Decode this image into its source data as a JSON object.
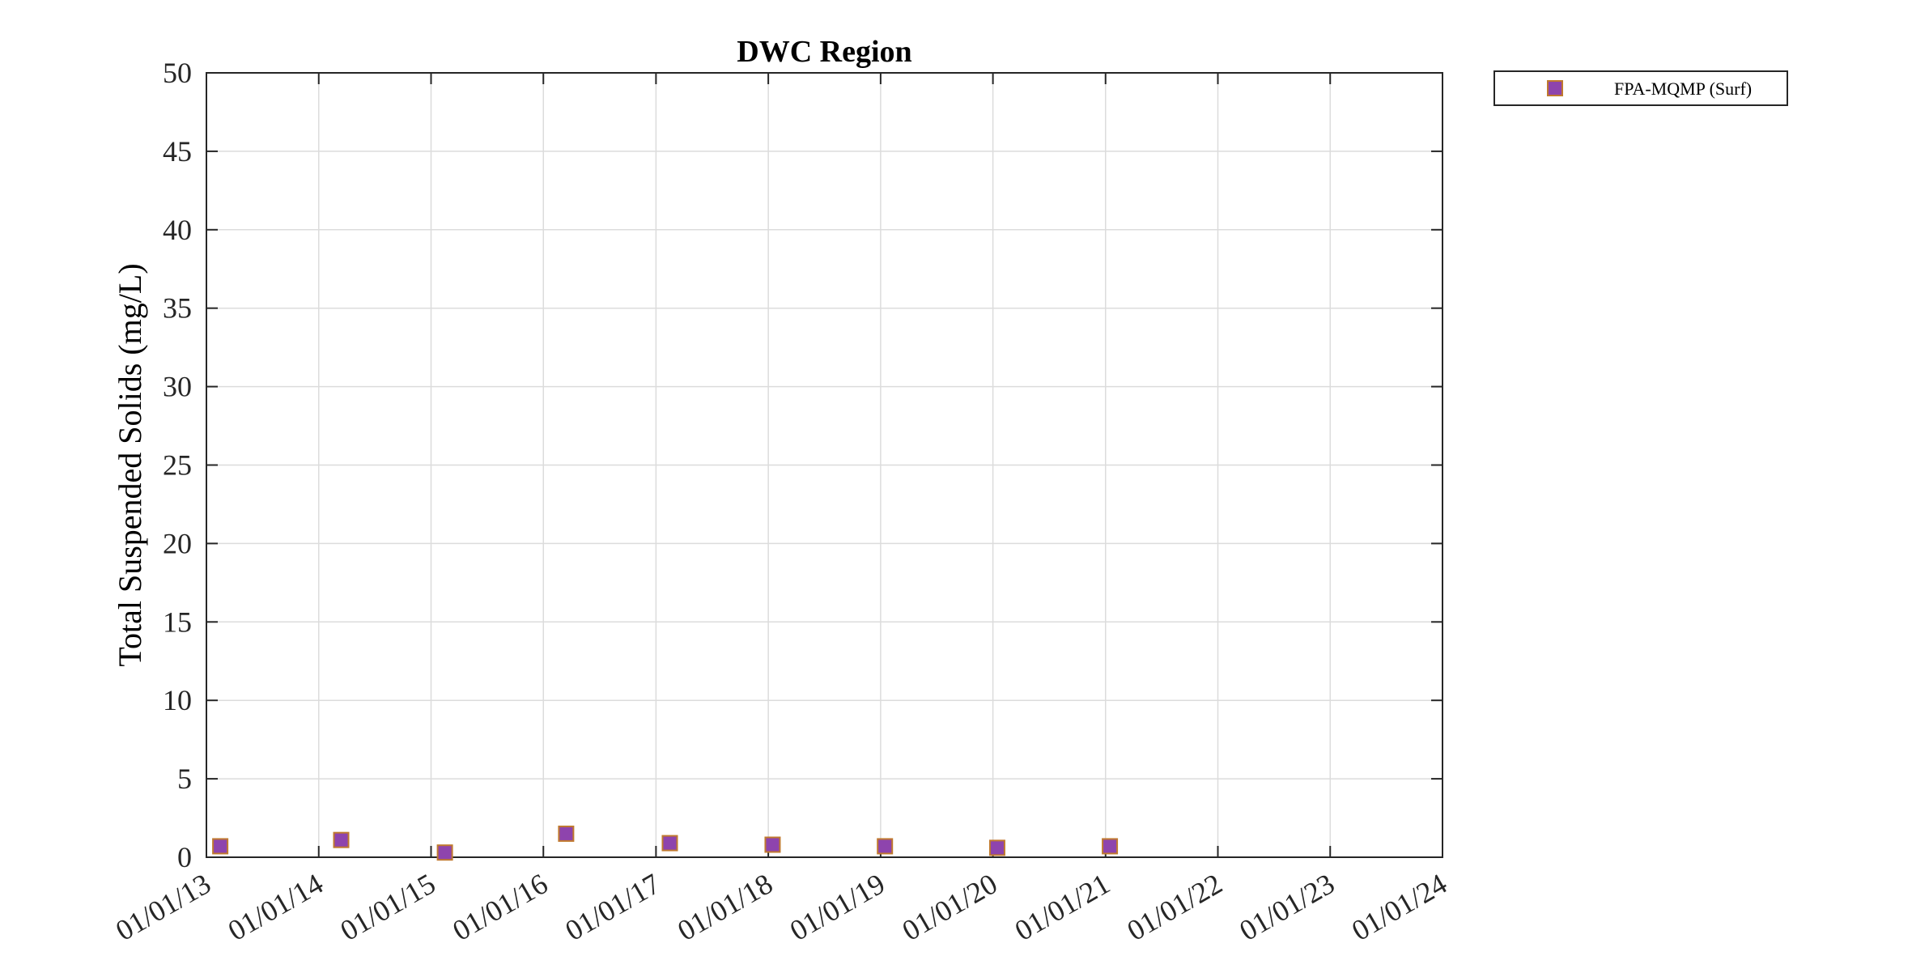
{
  "chart_data": {
    "type": "scatter",
    "title": "DWC Region",
    "xlabel": "",
    "ylabel": "Total Suspended Solids (mg/L)",
    "x_axis": {
      "type": "date",
      "range": [
        "2013-01-01",
        "2024-01-01"
      ],
      "tick_labels": [
        "01/01/13",
        "01/01/14",
        "01/01/15",
        "01/01/16",
        "01/01/17",
        "01/01/18",
        "01/01/19",
        "01/01/20",
        "01/01/21",
        "01/01/22",
        "01/01/23",
        "01/01/24"
      ]
    },
    "ylim": [
      0,
      50
    ],
    "y_ticks": [
      0,
      5,
      10,
      15,
      20,
      25,
      30,
      35,
      40,
      45,
      50
    ],
    "grid": true,
    "legend_position": "outside top-right",
    "series": [
      {
        "name": "FPA-MQMP (Surf)",
        "marker": "square",
        "color": "#8e44ad",
        "edge_color": "#c0792f",
        "points": [
          {
            "x": "2013-02-15",
            "y": 0.7
          },
          {
            "x": "2014-03-15",
            "y": 1.1
          },
          {
            "x": "2015-02-15",
            "y": 0.3
          },
          {
            "x": "2016-03-15",
            "y": 1.5
          },
          {
            "x": "2017-02-15",
            "y": 0.9
          },
          {
            "x": "2018-01-15",
            "y": 0.8
          },
          {
            "x": "2019-01-15",
            "y": 0.7
          },
          {
            "x": "2020-01-15",
            "y": 0.6
          },
          {
            "x": "2021-01-15",
            "y": 0.7
          }
        ]
      }
    ]
  }
}
